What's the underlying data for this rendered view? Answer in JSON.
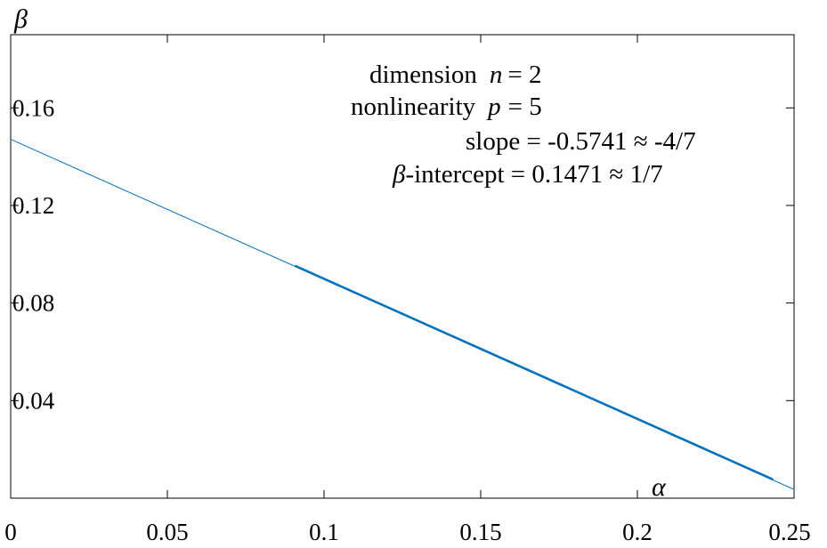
{
  "chart_data": {
    "type": "line",
    "xlabel": "α",
    "ylabel": "β",
    "xlim": [
      0,
      0.25
    ],
    "ylim": [
      0,
      0.19
    ],
    "x_ticks": [
      "0",
      "0.05",
      "0.1",
      "0.15",
      "0.2",
      "0.25"
    ],
    "y_ticks": [
      "0.04",
      "0.08",
      "0.12",
      "0.16"
    ],
    "x_tick_values": [
      0,
      0.05,
      0.1,
      0.15,
      0.2,
      0.25
    ],
    "y_tick_values": [
      0.04,
      0.08,
      0.12,
      0.16
    ],
    "grid": false,
    "series": [
      {
        "kind": "fit",
        "color": "#0072BD",
        "x": [
          0,
          0.25
        ],
        "y": [
          0.1471,
          0.00358
        ]
      },
      {
        "kind": "data",
        "color": "#0072BD",
        "x": [
          0.091,
          0.243
        ],
        "y": [
          0.0951,
          0.0078
        ]
      }
    ],
    "annotations": {
      "dimension_label": "dimension",
      "dimension_var": "n",
      "dimension_value": "=  2",
      "nonlinearity_label": "nonlinearity",
      "nonlinearity_var": "p",
      "nonlinearity_value": "=  5",
      "slope_text": "slope = -0.5741 ≈ -4/7",
      "intercept_var": "β",
      "intercept_text": "-intercept =  0.1471 ≈  1/7"
    }
  }
}
